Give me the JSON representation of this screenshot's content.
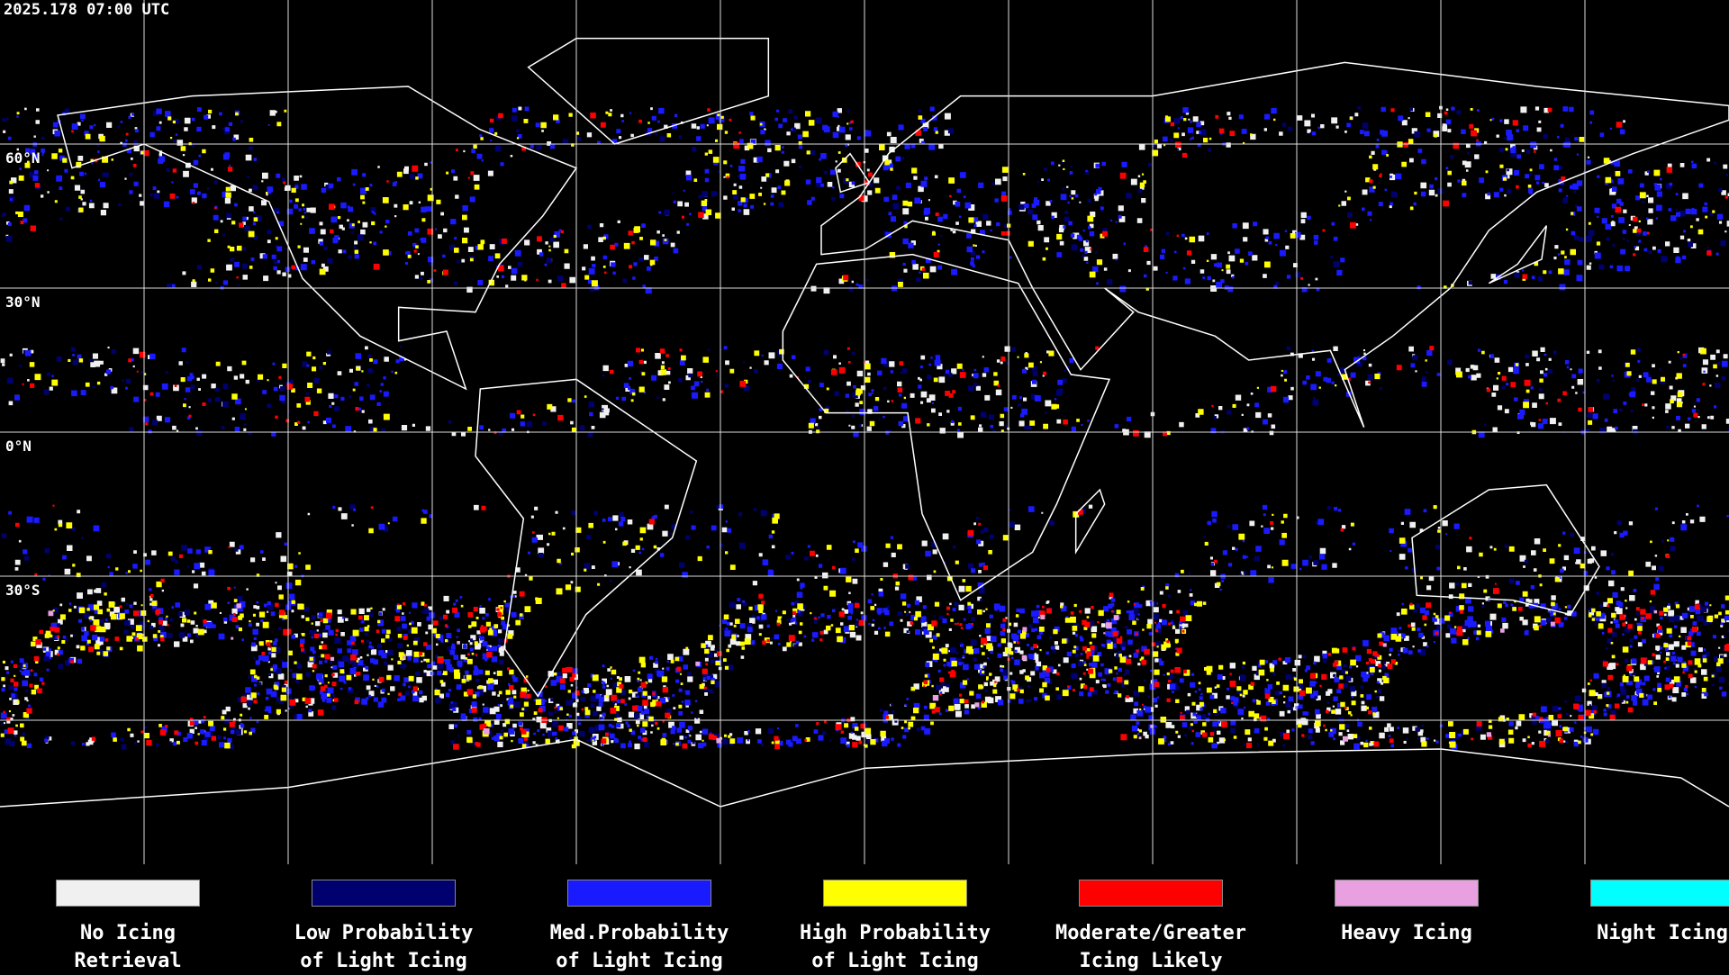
{
  "timestamp": "2025.178 07:00 UTC",
  "latitude_labels": [
    "60°N",
    "30°N",
    "0°N",
    "30°S"
  ],
  "legend": [
    {
      "label_lines": [
        "No Icing",
        "Retrieval"
      ],
      "color": "#f0f0f0"
    },
    {
      "label_lines": [
        "Low Probability",
        "of Light Icing"
      ],
      "color": "#00006e"
    },
    {
      "label_lines": [
        "Med.Probability",
        "of Light Icing"
      ],
      "color": "#1a1aff"
    },
    {
      "label_lines": [
        "High Probability",
        "of Light Icing"
      ],
      "color": "#ffff00"
    },
    {
      "label_lines": [
        "Moderate/Greater",
        "Icing Likely"
      ],
      "color": "#ff0000"
    },
    {
      "label_lines": [
        "Heavy Icing"
      ],
      "color": "#e8a0e0"
    },
    {
      "label_lines": [
        "Night Icing"
      ],
      "color": "#00ffff"
    }
  ]
}
